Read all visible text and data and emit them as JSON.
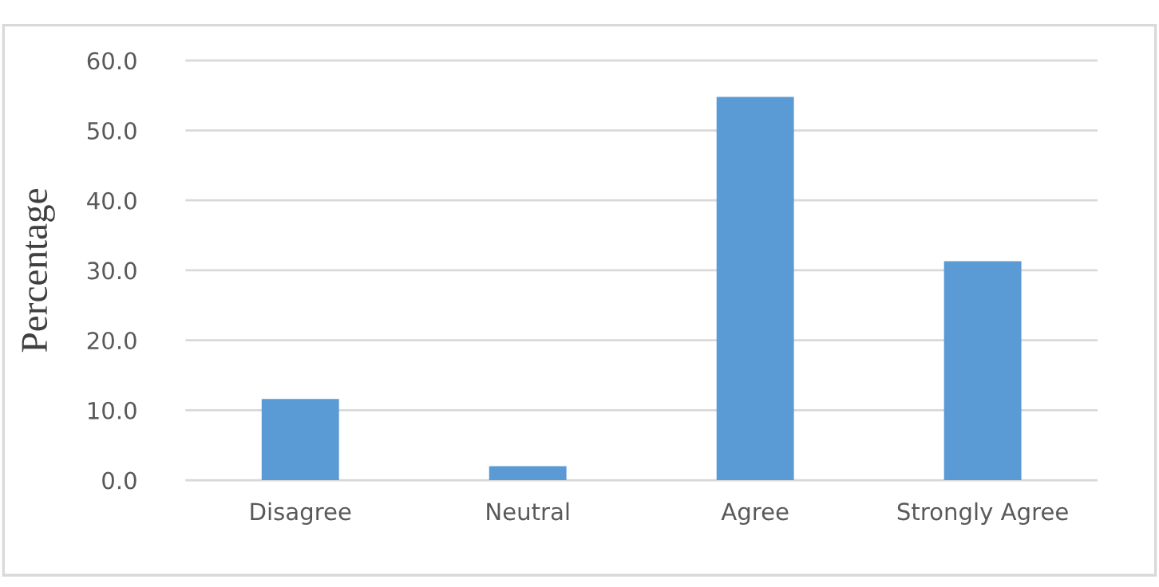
{
  "chart_data": {
    "type": "bar",
    "ylabel": "Percentage",
    "categories": [
      "Disagree",
      "Neutral",
      "Agree",
      "Strongly Agree"
    ],
    "values": [
      11.6,
      2.0,
      54.8,
      31.3
    ],
    "color": "#5b9bd5",
    "ylim": [
      0,
      60
    ],
    "yticks": [
      {
        "value": 0,
        "label": "0.0"
      },
      {
        "value": 10,
        "label": "10.0"
      },
      {
        "value": 20,
        "label": "20.0"
      },
      {
        "value": 30,
        "label": "30.0"
      },
      {
        "value": 40,
        "label": "40.0"
      },
      {
        "value": 50,
        "label": "50.0"
      },
      {
        "value": 60,
        "label": "60.0"
      }
    ],
    "grid": "y",
    "legend": false
  }
}
